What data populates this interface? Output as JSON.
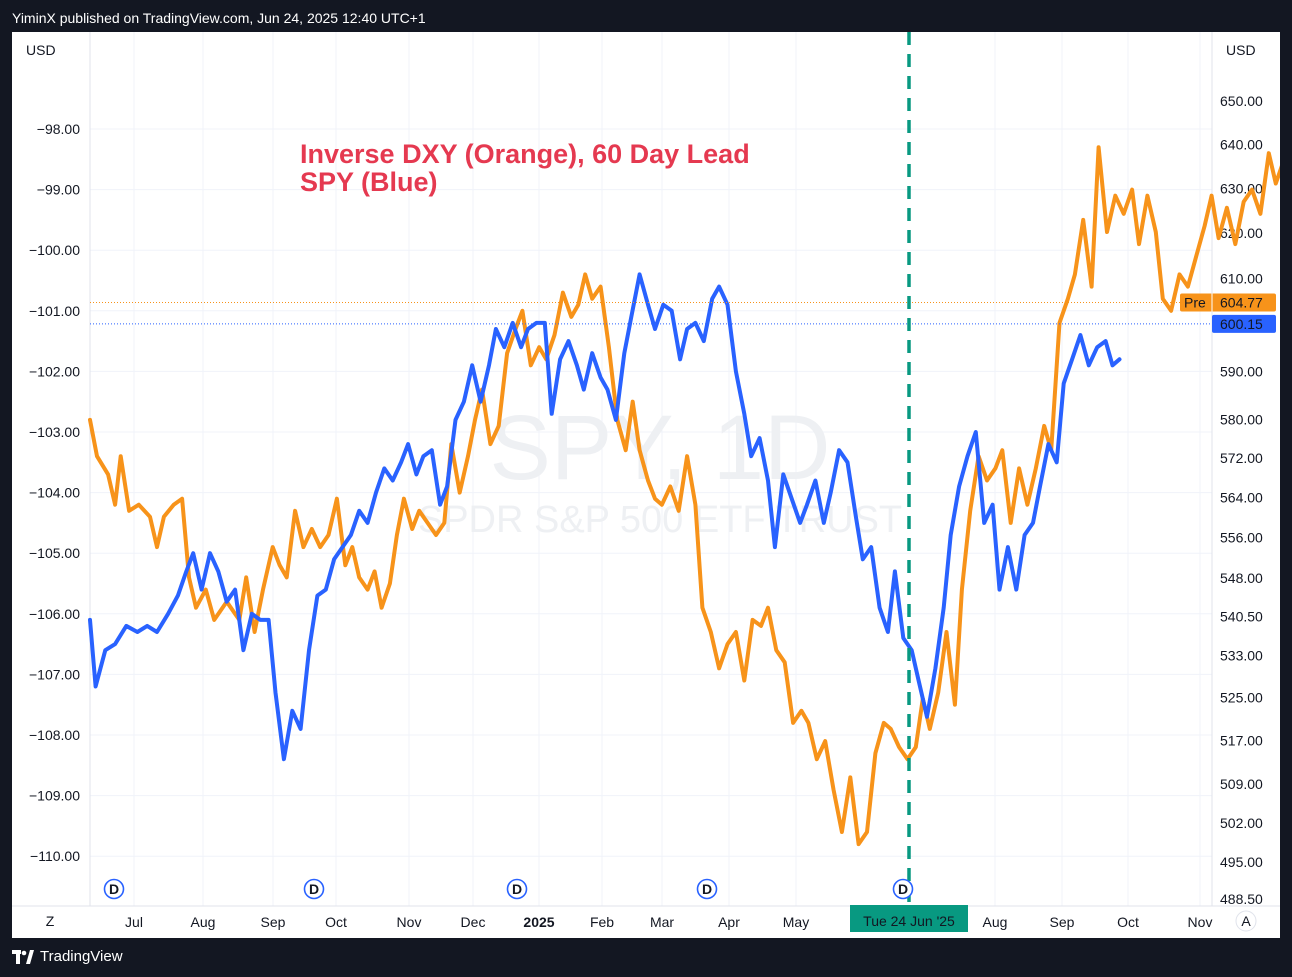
{
  "header": {
    "published_text": "YiminX published on TradingView.com, Jun 24, 2025 12:40 UTC+1"
  },
  "footer": {
    "brand": "TradingView",
    "logo_icon": "tradingview-logo-icon"
  },
  "colors": {
    "dxy": "#f7931a",
    "spy": "#2962ff",
    "marker": "#089981",
    "title": "#e53950"
  },
  "chart_data": {
    "type": "line",
    "title": "Inverse DXY (Orange), 60 Day Lead",
    "subtitle": "SPY (Blue)",
    "watermark": {
      "symbol": "SPY, 1D",
      "name": "SPDR S&P 500 ETF TRUST"
    },
    "left_axis": {
      "currency": "USD",
      "ticks": [
        "−98.00",
        "−99.00",
        "−100.00",
        "−101.00",
        "−102.00",
        "−103.00",
        "−104.00",
        "−105.00",
        "−106.00",
        "−107.00",
        "−108.00",
        "−109.00",
        "−110.00"
      ]
    },
    "right_axis": {
      "currency": "USD",
      "ticks": [
        "650.00",
        "640.00",
        "630.00",
        "620.00",
        "610.00",
        "590.00",
        "580.00",
        "572.00",
        "564.00",
        "556.00",
        "548.00",
        "540.50",
        "533.00",
        "525.00",
        "517.00",
        "509.00",
        "502.00",
        "495.00",
        "488.50"
      ],
      "scale": "log"
    },
    "x_axis": {
      "labels": [
        "Jul",
        "Aug",
        "Sep",
        "Oct",
        "Nov",
        "Dec",
        "2025",
        "Feb",
        "Mar",
        "Apr",
        "May",
        "Aug",
        "Sep",
        "Oct",
        "Nov"
      ],
      "current_label": "Tue 24 Jun '25",
      "corner_left": "Z",
      "corner_right": "A"
    },
    "price_labels": [
      {
        "series": "dxy",
        "prefix": "Pre",
        "value": "604.77"
      },
      {
        "series": "spy",
        "value": "600.15"
      }
    ],
    "dividend_marker": "D",
    "dividend_count": 5,
    "series": [
      {
        "name": "Inverse DXY (Orange)",
        "axis": "left",
        "points": [
          [
            0,
            -102.8
          ],
          [
            0.5,
            -103.4
          ],
          [
            1.3,
            -103.7
          ],
          [
            1.8,
            -104.2
          ],
          [
            2.2,
            -103.4
          ],
          [
            2.8,
            -104.3
          ],
          [
            3.5,
            -104.2
          ],
          [
            4.3,
            -104.4
          ],
          [
            4.8,
            -104.9
          ],
          [
            5.3,
            -104.4
          ],
          [
            6.0,
            -104.2
          ],
          [
            6.6,
            -104.1
          ],
          [
            7.1,
            -105.4
          ],
          [
            7.6,
            -105.9
          ],
          [
            8.3,
            -105.6
          ],
          [
            8.9,
            -106.1
          ],
          [
            9.8,
            -105.8
          ],
          [
            10.7,
            -106.1
          ],
          [
            11.2,
            -105.4
          ],
          [
            11.8,
            -106.3
          ],
          [
            12.4,
            -105.6
          ],
          [
            13.1,
            -104.9
          ],
          [
            13.6,
            -105.2
          ],
          [
            14.1,
            -105.4
          ],
          [
            14.7,
            -104.3
          ],
          [
            15.3,
            -104.9
          ],
          [
            15.9,
            -104.6
          ],
          [
            16.5,
            -104.9
          ],
          [
            17.1,
            -104.7
          ],
          [
            17.7,
            -104.1
          ],
          [
            18.3,
            -105.2
          ],
          [
            18.8,
            -104.9
          ],
          [
            19.3,
            -105.4
          ],
          [
            19.9,
            -105.6
          ],
          [
            20.4,
            -105.3
          ],
          [
            20.9,
            -105.9
          ],
          [
            21.5,
            -105.5
          ],
          [
            22.0,
            -104.7
          ],
          [
            22.5,
            -104.1
          ],
          [
            23.1,
            -104.6
          ],
          [
            23.6,
            -104.3
          ],
          [
            24.2,
            -104.5
          ],
          [
            24.8,
            -104.7
          ],
          [
            25.4,
            -104.5
          ],
          [
            25.9,
            -103.2
          ],
          [
            26.5,
            -104.0
          ],
          [
            27.1,
            -103.4
          ],
          [
            27.6,
            -102.8
          ],
          [
            28.1,
            -102.3
          ],
          [
            28.7,
            -103.2
          ],
          [
            29.3,
            -102.9
          ],
          [
            29.9,
            -101.7
          ],
          [
            30.5,
            -101.3
          ],
          [
            31.0,
            -101.0
          ],
          [
            31.6,
            -101.9
          ],
          [
            32.2,
            -101.6
          ],
          [
            32.7,
            -101.8
          ],
          [
            33.3,
            -101.4
          ],
          [
            33.9,
            -100.7
          ],
          [
            34.5,
            -101.1
          ],
          [
            35.0,
            -100.9
          ],
          [
            35.5,
            -100.4
          ],
          [
            36.0,
            -100.8
          ],
          [
            36.6,
            -100.6
          ],
          [
            37.2,
            -101.6
          ],
          [
            37.8,
            -102.8
          ],
          [
            38.4,
            -103.3
          ],
          [
            38.9,
            -102.5
          ],
          [
            39.4,
            -103.3
          ],
          [
            40.0,
            -103.8
          ],
          [
            40.5,
            -104.1
          ],
          [
            41.0,
            -104.2
          ],
          [
            41.6,
            -103.9
          ],
          [
            42.2,
            -104.3
          ],
          [
            42.8,
            -103.4
          ],
          [
            43.4,
            -104.2
          ],
          [
            43.9,
            -105.9
          ],
          [
            44.5,
            -106.3
          ],
          [
            45.1,
            -106.9
          ],
          [
            45.7,
            -106.5
          ],
          [
            46.3,
            -106.3
          ],
          [
            46.9,
            -107.1
          ],
          [
            47.5,
            -106.1
          ],
          [
            48.1,
            -106.2
          ],
          [
            48.6,
            -105.9
          ],
          [
            49.2,
            -106.6
          ],
          [
            49.8,
            -106.8
          ],
          [
            50.4,
            -107.8
          ],
          [
            51.0,
            -107.6
          ],
          [
            51.5,
            -107.8
          ],
          [
            52.1,
            -108.4
          ],
          [
            52.7,
            -108.1
          ],
          [
            53.3,
            -108.9
          ],
          [
            53.9,
            -109.6
          ],
          [
            54.5,
            -108.7
          ],
          [
            55.1,
            -109.8
          ],
          [
            55.7,
            -109.6
          ],
          [
            56.3,
            -108.3
          ],
          [
            56.9,
            -107.8
          ],
          [
            57.4,
            -107.9
          ],
          [
            58.0,
            -108.2
          ],
          [
            58.6,
            -108.4
          ],
          [
            59.2,
            -108.2
          ],
          [
            59.7,
            -107.4
          ],
          [
            60.2,
            -107.9
          ],
          [
            60.8,
            -107.3
          ],
          [
            61.4,
            -106.3
          ],
          [
            62.0,
            -107.5
          ],
          [
            62.5,
            -105.6
          ],
          [
            63.1,
            -104.3
          ],
          [
            63.7,
            -103.4
          ],
          [
            64.3,
            -103.8
          ],
          [
            64.9,
            -103.6
          ],
          [
            65.4,
            -103.3
          ],
          [
            66.0,
            -104.5
          ],
          [
            66.6,
            -103.6
          ],
          [
            67.2,
            -104.2
          ],
          [
            67.8,
            -103.6
          ],
          [
            68.4,
            -102.9
          ],
          [
            68.9,
            -103.3
          ],
          [
            69.5,
            -101.2
          ],
          [
            70.1,
            -100.8
          ],
          [
            70.6,
            -100.4
          ],
          [
            71.2,
            -99.5
          ],
          [
            71.8,
            -100.6
          ],
          [
            72.3,
            -98.3
          ],
          [
            72.9,
            -99.7
          ],
          [
            73.5,
            -99.1
          ],
          [
            74.1,
            -99.4
          ],
          [
            74.7,
            -99.0
          ],
          [
            75.2,
            -99.9
          ],
          [
            75.8,
            -99.1
          ],
          [
            76.4,
            -99.7
          ],
          [
            76.9,
            -100.8
          ],
          [
            77.5,
            -101.0
          ],
          [
            78.1,
            -100.4
          ],
          [
            78.7,
            -100.6
          ],
          [
            79.3,
            -100.1
          ],
          [
            79.9,
            -99.6
          ],
          [
            80.4,
            -99.1
          ],
          [
            80.9,
            -99.8
          ],
          [
            81.5,
            -99.3
          ],
          [
            82.1,
            -99.9
          ],
          [
            82.7,
            -99.2
          ],
          [
            83.3,
            -99.0
          ],
          [
            83.9,
            -99.4
          ],
          [
            84.5,
            -98.4
          ],
          [
            85.0,
            -98.9
          ],
          [
            85.6,
            -98.5
          ]
        ]
      },
      {
        "name": "SPY (Blue)",
        "axis": "left",
        "points": [
          [
            0,
            -106.1
          ],
          [
            0.4,
            -107.2
          ],
          [
            1.1,
            -106.6
          ],
          [
            1.8,
            -106.5
          ],
          [
            2.6,
            -106.2
          ],
          [
            3.4,
            -106.3
          ],
          [
            4.1,
            -106.2
          ],
          [
            4.8,
            -106.3
          ],
          [
            5.6,
            -106.0
          ],
          [
            6.3,
            -105.7
          ],
          [
            6.9,
            -105.3
          ],
          [
            7.4,
            -105.0
          ],
          [
            8.0,
            -105.6
          ],
          [
            8.6,
            -105.0
          ],
          [
            9.2,
            -105.3
          ],
          [
            9.8,
            -105.8
          ],
          [
            10.4,
            -105.6
          ],
          [
            11.0,
            -106.6
          ],
          [
            11.6,
            -106.0
          ],
          [
            12.2,
            -106.1
          ],
          [
            12.8,
            -106.1
          ],
          [
            13.3,
            -107.3
          ],
          [
            13.9,
            -108.4
          ],
          [
            14.5,
            -107.6
          ],
          [
            15.1,
            -107.9
          ],
          [
            15.7,
            -106.6
          ],
          [
            16.3,
            -105.7
          ],
          [
            16.9,
            -105.6
          ],
          [
            17.5,
            -105.1
          ],
          [
            18.1,
            -104.9
          ],
          [
            18.7,
            -104.7
          ],
          [
            19.3,
            -104.3
          ],
          [
            19.9,
            -104.5
          ],
          [
            20.5,
            -104.0
          ],
          [
            21.1,
            -103.6
          ],
          [
            21.7,
            -103.8
          ],
          [
            22.3,
            -103.5
          ],
          [
            22.8,
            -103.2
          ],
          [
            23.4,
            -103.7
          ],
          [
            23.9,
            -103.4
          ],
          [
            24.5,
            -103.3
          ],
          [
            25.1,
            -104.2
          ],
          [
            25.6,
            -103.9
          ],
          [
            26.2,
            -102.8
          ],
          [
            26.8,
            -102.5
          ],
          [
            27.4,
            -101.9
          ],
          [
            28.0,
            -102.5
          ],
          [
            28.6,
            -101.9
          ],
          [
            29.1,
            -101.3
          ],
          [
            29.7,
            -101.6
          ],
          [
            30.3,
            -101.2
          ],
          [
            30.9,
            -101.6
          ],
          [
            31.4,
            -101.3
          ],
          [
            32.0,
            -101.2
          ],
          [
            32.6,
            -101.2
          ],
          [
            33.1,
            -102.7
          ],
          [
            33.7,
            -101.8
          ],
          [
            34.3,
            -101.5
          ],
          [
            34.9,
            -101.9
          ],
          [
            35.4,
            -102.3
          ],
          [
            36.0,
            -101.7
          ],
          [
            36.6,
            -102.1
          ],
          [
            37.1,
            -102.3
          ],
          [
            37.7,
            -102.8
          ],
          [
            38.3,
            -101.7
          ],
          [
            38.8,
            -101.1
          ],
          [
            39.4,
            -100.4
          ],
          [
            40.0,
            -100.9
          ],
          [
            40.5,
            -101.3
          ],
          [
            41.1,
            -100.9
          ],
          [
            41.7,
            -101.0
          ],
          [
            42.3,
            -101.8
          ],
          [
            42.8,
            -101.3
          ],
          [
            43.4,
            -101.2
          ],
          [
            44.0,
            -101.5
          ],
          [
            44.6,
            -100.8
          ],
          [
            45.1,
            -100.6
          ],
          [
            45.7,
            -100.9
          ],
          [
            46.3,
            -102.0
          ],
          [
            46.9,
            -102.7
          ],
          [
            47.4,
            -103.4
          ],
          [
            48.0,
            -103.1
          ],
          [
            48.6,
            -103.8
          ],
          [
            49.1,
            -104.9
          ],
          [
            49.7,
            -103.7
          ],
          [
            50.3,
            -104.1
          ],
          [
            50.9,
            -104.5
          ],
          [
            51.4,
            -104.2
          ],
          [
            52.0,
            -103.8
          ],
          [
            52.6,
            -104.5
          ],
          [
            53.1,
            -104.0
          ],
          [
            53.7,
            -103.3
          ],
          [
            54.3,
            -103.5
          ],
          [
            54.9,
            -104.4
          ],
          [
            55.4,
            -105.1
          ],
          [
            56.0,
            -104.9
          ],
          [
            56.6,
            -105.9
          ],
          [
            57.2,
            -106.3
          ],
          [
            57.7,
            -105.3
          ],
          [
            58.3,
            -106.4
          ],
          [
            58.9,
            -106.6
          ],
          [
            59.4,
            -107.1
          ],
          [
            60.0,
            -107.7
          ],
          [
            60.6,
            -106.9
          ],
          [
            61.2,
            -105.9
          ],
          [
            61.7,
            -104.7
          ],
          [
            62.3,
            -103.9
          ],
          [
            62.9,
            -103.4
          ],
          [
            63.5,
            -103.0
          ],
          [
            64.1,
            -104.5
          ],
          [
            64.7,
            -104.2
          ],
          [
            65.2,
            -105.6
          ],
          [
            65.8,
            -104.9
          ],
          [
            66.4,
            -105.6
          ],
          [
            67.0,
            -104.7
          ],
          [
            67.6,
            -104.5
          ],
          [
            68.1,
            -103.9
          ],
          [
            68.7,
            -103.2
          ],
          [
            69.3,
            -103.5
          ],
          [
            69.8,
            -102.2
          ],
          [
            70.4,
            -101.8
          ],
          [
            71.0,
            -101.4
          ],
          [
            71.6,
            -101.9
          ],
          [
            72.2,
            -101.6
          ],
          [
            72.8,
            -101.5
          ],
          [
            73.3,
            -101.9
          ],
          [
            73.8,
            -101.8
          ]
        ]
      }
    ]
  }
}
